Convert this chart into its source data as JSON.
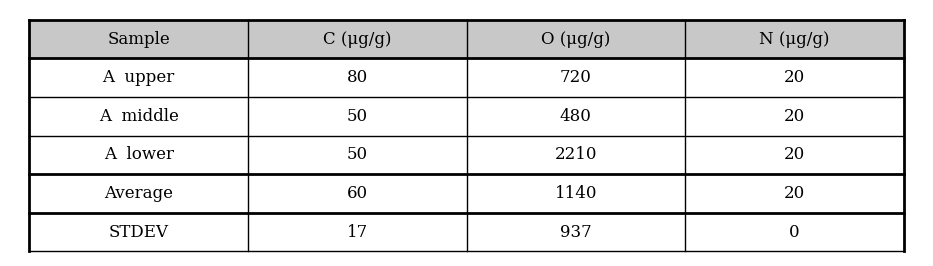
{
  "columns": [
    "Sample",
    "C (μg/g)",
    "O (μg/g)",
    "N (μg/g)"
  ],
  "rows": [
    [
      "A  upper",
      "80",
      "720",
      "20"
    ],
    [
      "A  middle",
      "50",
      "480",
      "20"
    ],
    [
      "A  lower",
      "50",
      "2210",
      "20"
    ],
    [
      "Average",
      "60",
      "1140",
      "20"
    ],
    [
      "STDEV",
      "17",
      "937",
      "0"
    ]
  ],
  "header_bg": "#c8c8c8",
  "data_bg": "#ffffff",
  "border_color": "#000000",
  "header_font_size": 12,
  "data_font_size": 12,
  "fig_bg": "#ffffff",
  "text_color": "#000000",
  "thick_line_after": [
    0,
    1,
    4,
    5
  ]
}
